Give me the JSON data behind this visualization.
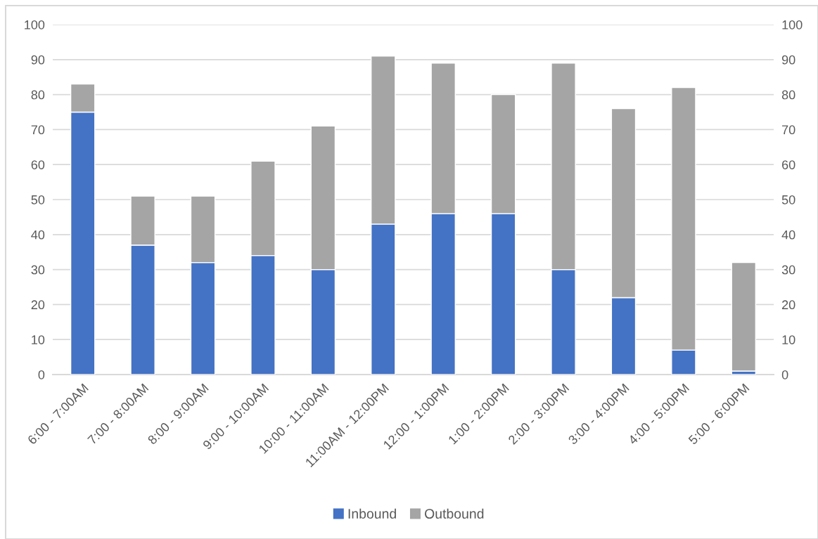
{
  "chart_data": {
    "type": "bar",
    "stacked": true,
    "categories": [
      "6:00 - 7:00AM",
      "7:00 - 8:00AM",
      "8:00 - 9:00AM",
      "9:00 - 10:00AM",
      "10:00 - 11:00AM",
      "11:00AM - 12:00PM",
      "12:00 - 1:00PM",
      "1:00 - 2:00PM",
      "2:00 - 3:00PM",
      "3:00 - 4:00PM",
      "4:00 - 5:00PM",
      "5:00 - 6:00PM"
    ],
    "series": [
      {
        "name": "Inbound",
        "color": "#4472c4",
        "values": [
          75,
          37,
          32,
          34,
          30,
          43,
          46,
          46,
          30,
          22,
          7,
          1
        ]
      },
      {
        "name": "Outbound",
        "color": "#a5a5a5",
        "values": [
          8,
          14,
          19,
          27,
          41,
          48,
          43,
          34,
          59,
          54,
          75,
          31
        ]
      }
    ],
    "ylim": [
      0,
      100
    ],
    "yticks": [
      0,
      10,
      20,
      30,
      40,
      50,
      60,
      70,
      80,
      90,
      100
    ],
    "y2lim": [
      0,
      100
    ],
    "y2ticks": [
      0,
      10,
      20,
      30,
      40,
      50,
      60,
      70,
      80,
      90,
      100
    ],
    "grid": "y",
    "legend": "bottom"
  }
}
